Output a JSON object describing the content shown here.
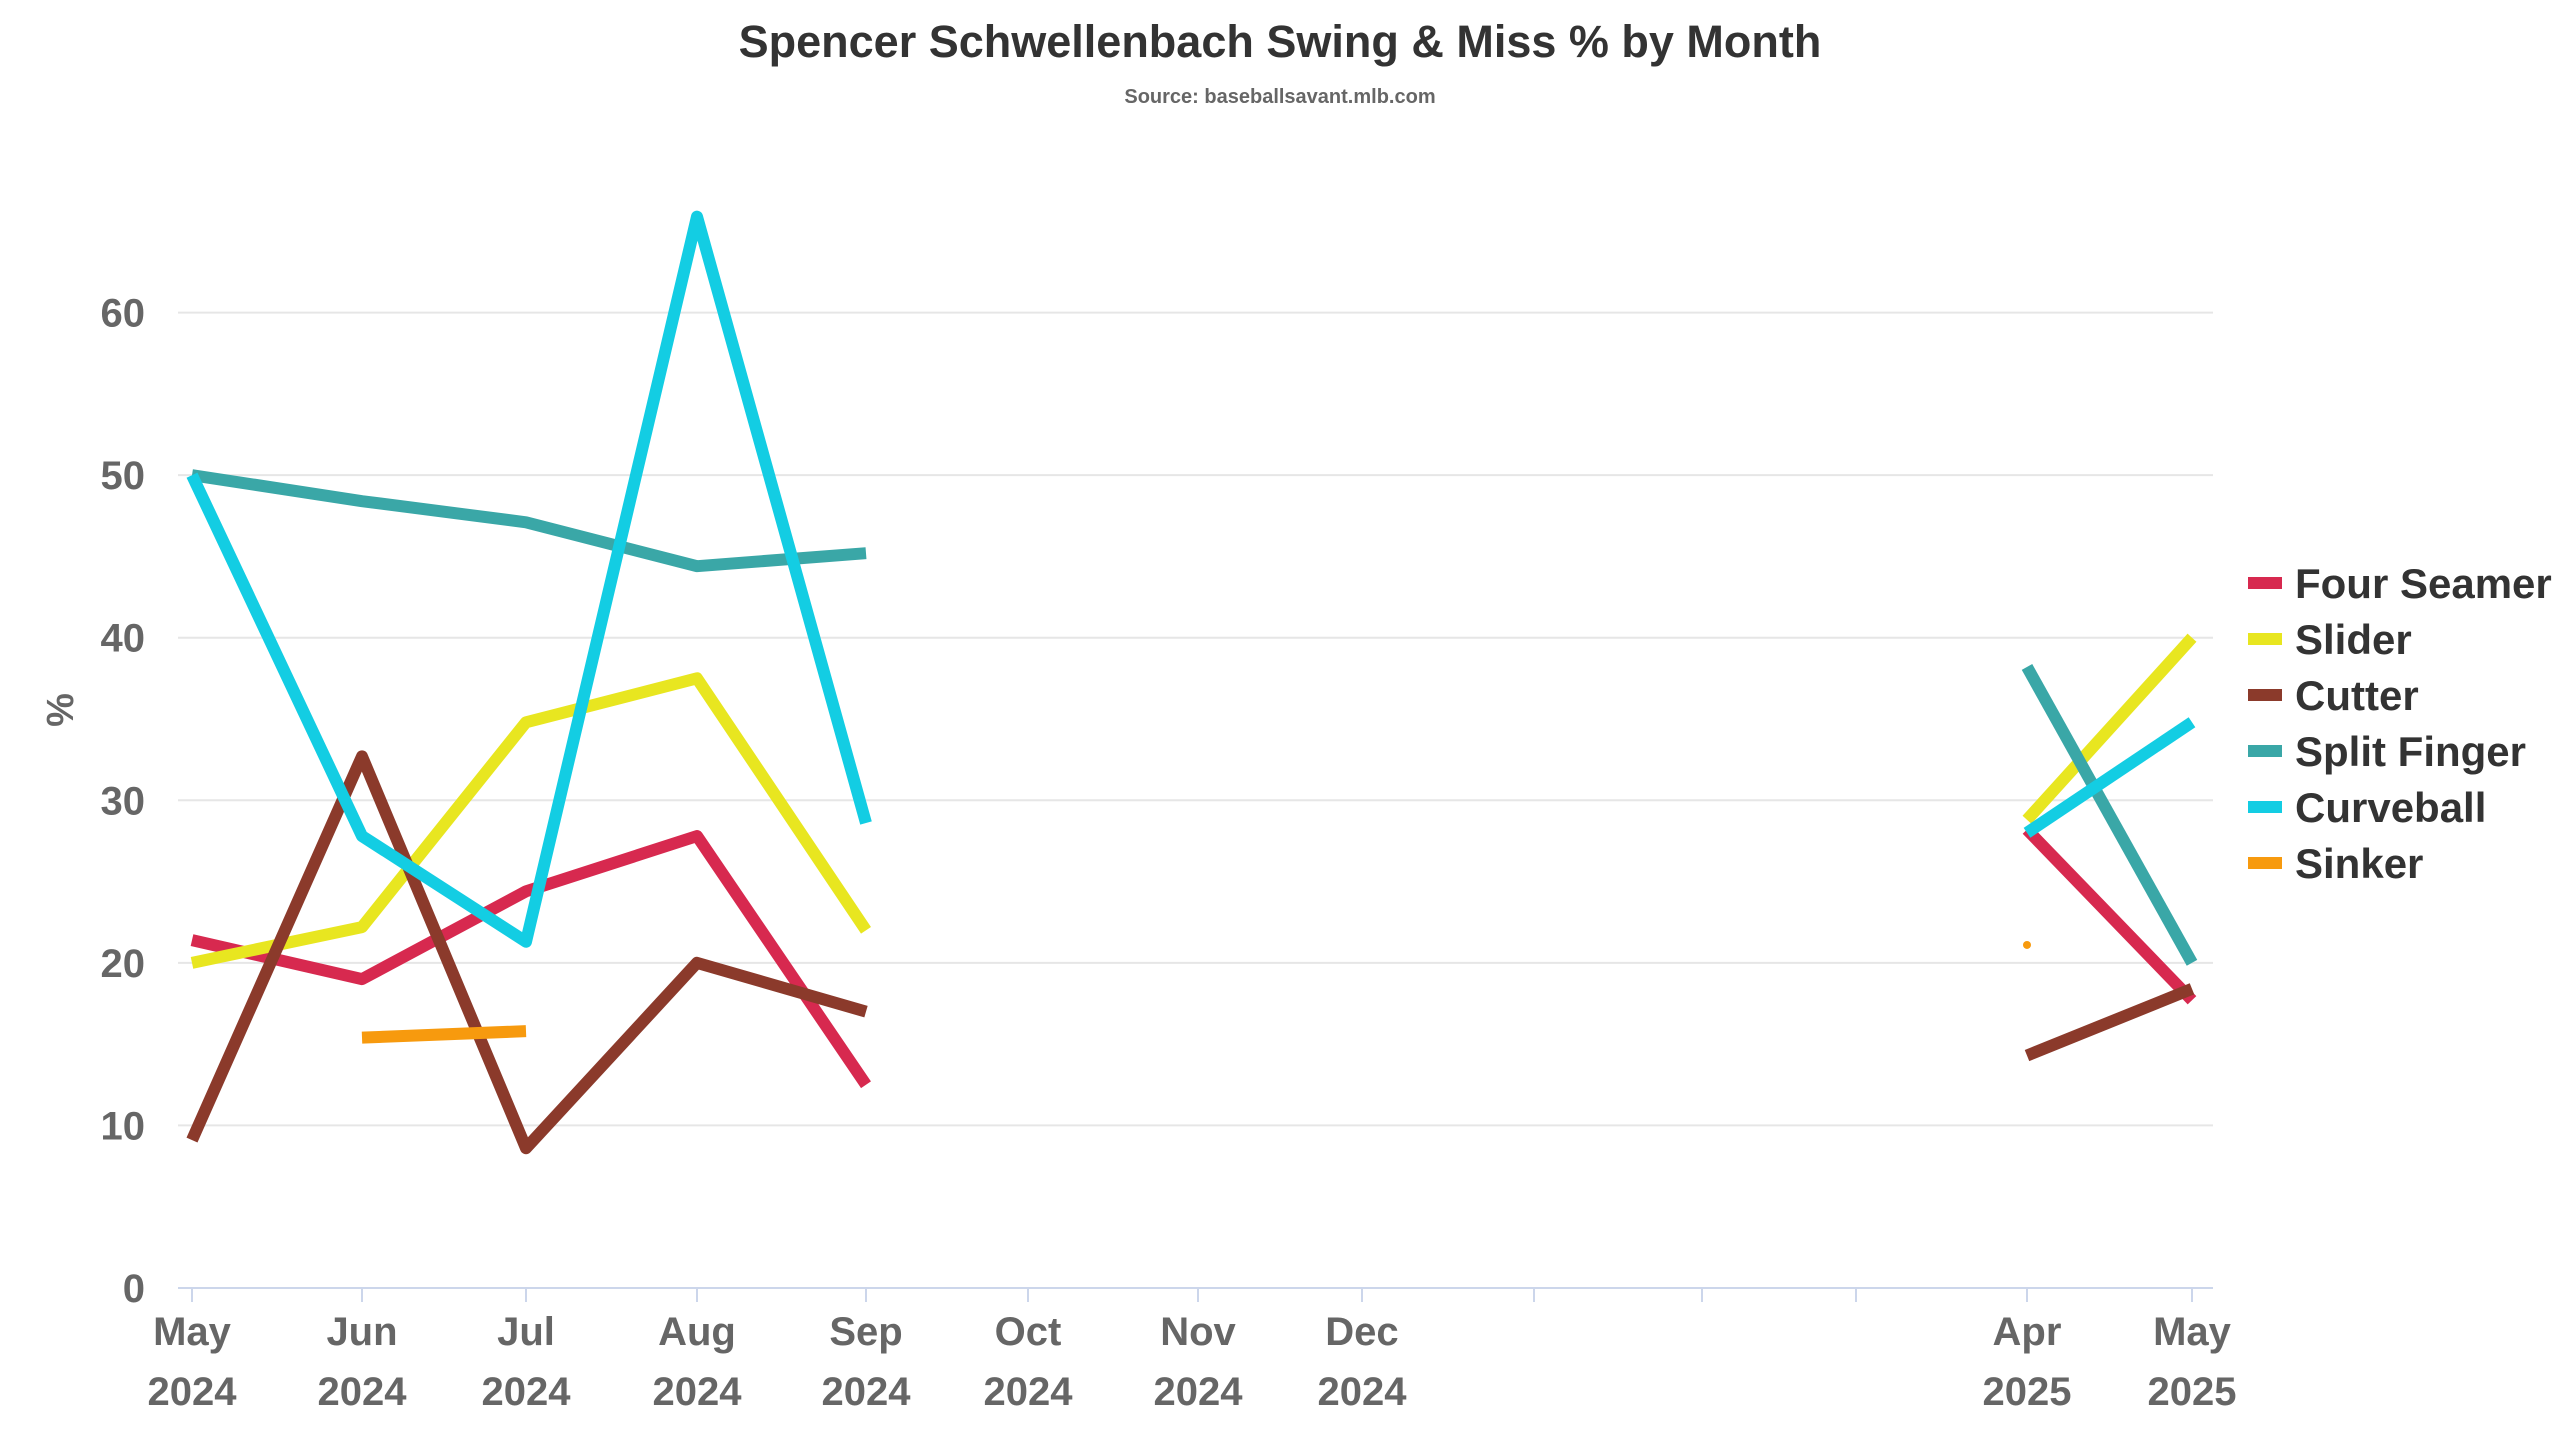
{
  "chart_data": {
    "type": "line",
    "title": "Spencer Schwellenbach Swing & Miss % by Month",
    "subtitle": "Source: baseballsavant.mlb.com",
    "ylabel": "%",
    "xlabel": "",
    "ylim": [
      0,
      70
    ],
    "yticks": [
      0,
      10,
      20,
      30,
      40,
      50,
      60
    ],
    "grid": true,
    "legend": "right",
    "x_categories": [
      {
        "label": [
          "May",
          "2024"
        ]
      },
      {
        "label": [
          "Jun",
          "2024"
        ]
      },
      {
        "label": [
          "Jul",
          "2024"
        ]
      },
      {
        "label": [
          "Aug",
          "2024"
        ]
      },
      {
        "label": [
          "Sep",
          "2024"
        ]
      },
      {
        "label": [
          "Oct",
          "2024"
        ]
      },
      {
        "label": [
          "Nov",
          "2024"
        ]
      },
      {
        "label": [
          "Dec",
          "2024"
        ]
      },
      {
        "label": [
          "",
          ""
        ]
      },
      {
        "label": [
          "",
          ""
        ]
      },
      {
        "label": [
          "",
          ""
        ]
      },
      {
        "label": [
          "Apr",
          "2025"
        ]
      },
      {
        "label": [
          "May",
          "2025"
        ]
      }
    ],
    "x": [
      "2024-05",
      "2024-06",
      "2024-07",
      "2024-08",
      "2024-09",
      "2024-10",
      "2024-11",
      "2024-12",
      "2025-01",
      "2025-02",
      "2025-03",
      "2025-04",
      "2025-05"
    ],
    "series": [
      {
        "name": "Four Seamer",
        "color": "#d7294f",
        "values": [
          21.4,
          19.0,
          24.4,
          27.8,
          12.5,
          null,
          null,
          null,
          null,
          null,
          null,
          28.2,
          17.7
        ]
      },
      {
        "name": "Slider",
        "color": "#e8e620",
        "values": [
          20.0,
          22.2,
          34.8,
          37.5,
          22.0,
          null,
          null,
          null,
          null,
          null,
          null,
          28.8,
          40.0
        ]
      },
      {
        "name": "Cutter",
        "color": "#8b3a2b",
        "values": [
          9.1,
          32.7,
          8.6,
          20.0,
          17.0,
          null,
          null,
          null,
          null,
          null,
          null,
          14.3,
          18.4
        ]
      },
      {
        "name": "Split Finger",
        "color": "#3aa7a7",
        "values": [
          50.0,
          48.4,
          47.1,
          44.4,
          45.2,
          null,
          null,
          null,
          null,
          null,
          null,
          38.2,
          20.0
        ]
      },
      {
        "name": "Curveball",
        "color": "#13cde3",
        "values": [
          50.0,
          27.8,
          21.3,
          65.9,
          28.6,
          null,
          null,
          null,
          null,
          null,
          null,
          28.0,
          34.8
        ]
      },
      {
        "name": "Sinker",
        "color": "#f79a0e",
        "values": [
          null,
          15.4,
          15.8,
          null,
          null,
          null,
          null,
          null,
          null,
          null,
          null,
          21.1,
          null
        ]
      }
    ]
  }
}
